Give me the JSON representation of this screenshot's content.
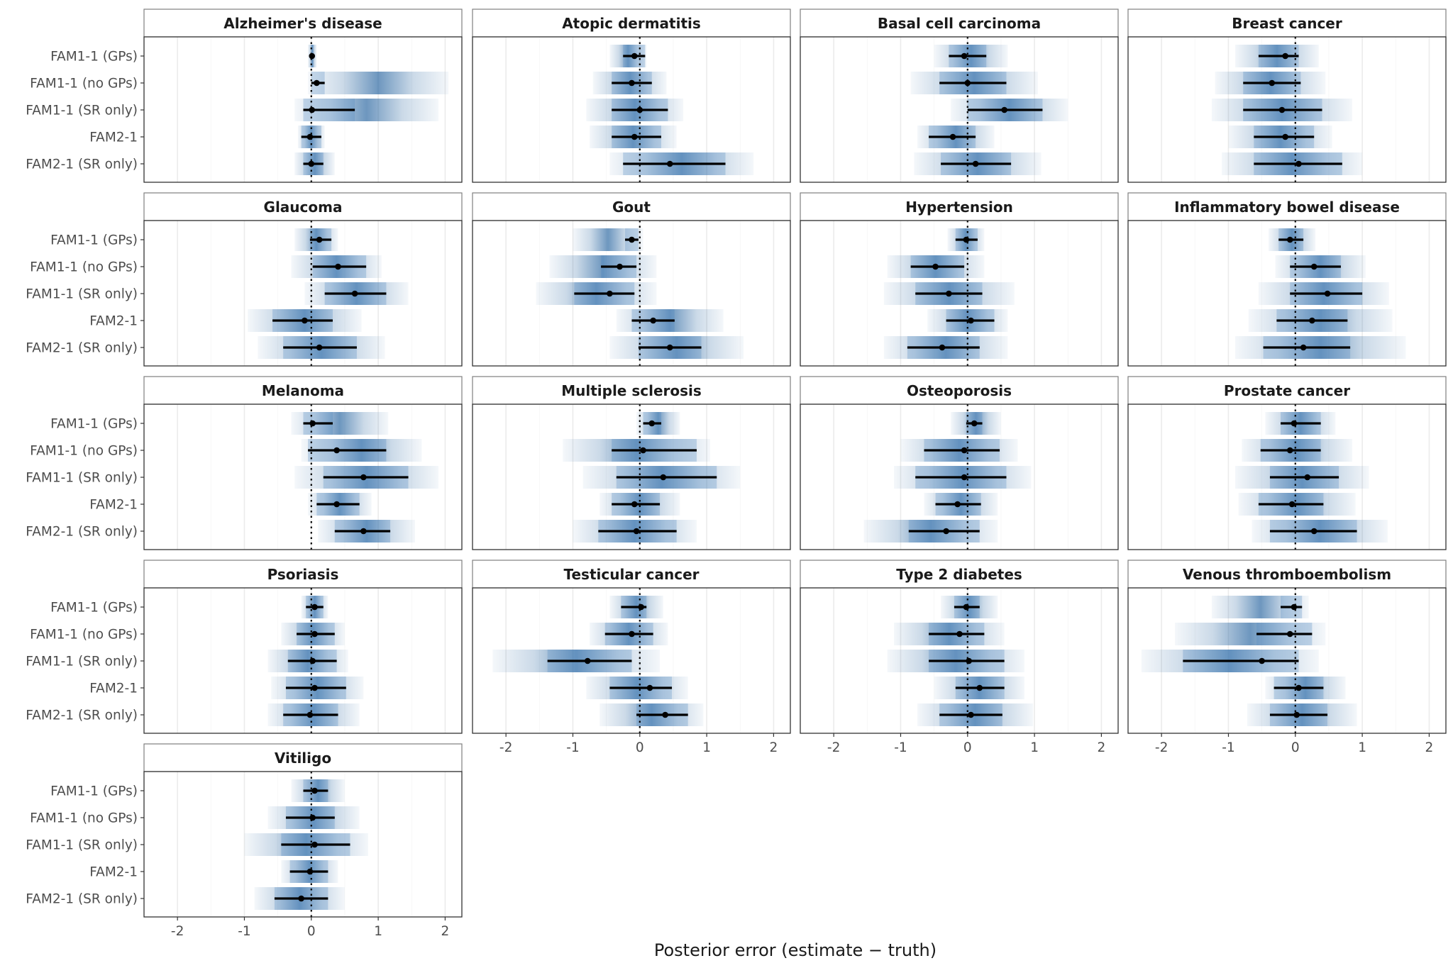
{
  "chart_data": {
    "type": "forest",
    "xlabel": "Posterior error (estimate − truth)",
    "xlim": [
      -2.5,
      2.25
    ],
    "xticks": [
      -2,
      -1,
      0,
      1,
      2
    ],
    "xtick_labels": [
      "-2",
      "-1",
      "0",
      "1",
      "2"
    ],
    "reference_line": 0,
    "methods": [
      "FAM1-1 (GPs)",
      "FAM1-1 (no GPs)",
      "FAM1-1 (SR only)",
      "FAM2-1",
      "FAM2-1 (SR only)"
    ],
    "panels": [
      {
        "title": "Alzheimer's disease",
        "estimates": [
          {
            "method": "FAM1-1 (GPs)",
            "point": 0.01,
            "lower": 0.0,
            "upper": 0.03,
            "dist_min": -0.05,
            "dist_max": 0.08
          },
          {
            "method": "FAM1-1 (no GPs)",
            "point": 0.08,
            "lower": 0.0,
            "upper": 0.2,
            "dist_min": -0.05,
            "dist_max": 2.05
          },
          {
            "method": "FAM1-1 (SR only)",
            "point": 0.01,
            "lower": -0.12,
            "upper": 0.65,
            "dist_min": -0.25,
            "dist_max": 1.9
          },
          {
            "method": "FAM2-1",
            "point": -0.02,
            "lower": -0.15,
            "upper": 0.15,
            "dist_min": -0.2,
            "dist_max": 0.2
          },
          {
            "method": "FAM2-1 (SR only)",
            "point": 0.0,
            "lower": -0.12,
            "upper": 0.18,
            "dist_min": -0.25,
            "dist_max": 0.35
          }
        ]
      },
      {
        "title": "Atopic dermatitis",
        "estimates": [
          {
            "method": "FAM1-1 (GPs)",
            "point": -0.08,
            "lower": -0.25,
            "upper": 0.08,
            "dist_min": -0.45,
            "dist_max": 0.1
          },
          {
            "method": "FAM1-1 (no GPs)",
            "point": -0.12,
            "lower": -0.42,
            "upper": 0.18,
            "dist_min": -0.7,
            "dist_max": 0.4
          },
          {
            "method": "FAM1-1 (SR only)",
            "point": 0.0,
            "lower": -0.42,
            "upper": 0.42,
            "dist_min": -0.8,
            "dist_max": 0.65
          },
          {
            "method": "FAM2-1",
            "point": -0.08,
            "lower": -0.42,
            "upper": 0.32,
            "dist_min": -0.75,
            "dist_max": 0.55
          },
          {
            "method": "FAM2-1 (SR only)",
            "point": 0.45,
            "lower": -0.25,
            "upper": 1.28,
            "dist_min": -0.45,
            "dist_max": 1.7
          }
        ]
      },
      {
        "title": "Basal cell carcinoma",
        "estimates": [
          {
            "method": "FAM1-1 (GPs)",
            "point": -0.05,
            "lower": -0.28,
            "upper": 0.28,
            "dist_min": -0.5,
            "dist_max": 0.6
          },
          {
            "method": "FAM1-1 (no GPs)",
            "point": 0.0,
            "lower": -0.42,
            "upper": 0.58,
            "dist_min": -0.85,
            "dist_max": 1.05
          },
          {
            "method": "FAM1-1 (SR only)",
            "point": 0.55,
            "lower": 0.0,
            "upper": 1.12,
            "dist_min": -0.25,
            "dist_max": 1.5
          },
          {
            "method": "FAM2-1",
            "point": -0.22,
            "lower": -0.58,
            "upper": 0.12,
            "dist_min": -0.75,
            "dist_max": 0.4
          },
          {
            "method": "FAM2-1 (SR only)",
            "point": 0.12,
            "lower": -0.4,
            "upper": 0.65,
            "dist_min": -0.8,
            "dist_max": 1.1
          }
        ]
      },
      {
        "title": "Breast cancer",
        "estimates": [
          {
            "method": "FAM1-1 (GPs)",
            "point": -0.15,
            "lower": -0.55,
            "upper": 0.05,
            "dist_min": -0.9,
            "dist_max": 0.35
          },
          {
            "method": "FAM1-1 (no GPs)",
            "point": -0.35,
            "lower": -0.78,
            "upper": 0.08,
            "dist_min": -1.2,
            "dist_max": 0.45
          },
          {
            "method": "FAM1-1 (SR only)",
            "point": -0.2,
            "lower": -0.78,
            "upper": 0.4,
            "dist_min": -1.25,
            "dist_max": 0.85
          },
          {
            "method": "FAM2-1",
            "point": -0.15,
            "lower": -0.62,
            "upper": 0.28,
            "dist_min": -1.0,
            "dist_max": 0.55
          },
          {
            "method": "FAM2-1 (SR only)",
            "point": 0.05,
            "lower": -0.62,
            "upper": 0.7,
            "dist_min": -1.1,
            "dist_max": 1.0
          }
        ]
      },
      {
        "title": "Glaucoma",
        "estimates": [
          {
            "method": "FAM1-1 (GPs)",
            "point": 0.12,
            "lower": -0.02,
            "upper": 0.3,
            "dist_min": -0.25,
            "dist_max": 0.4
          },
          {
            "method": "FAM1-1 (no GPs)",
            "point": 0.4,
            "lower": 0.02,
            "upper": 0.82,
            "dist_min": -0.3,
            "dist_max": 1.05
          },
          {
            "method": "FAM1-1 (SR only)",
            "point": 0.65,
            "lower": 0.2,
            "upper": 1.12,
            "dist_min": -0.1,
            "dist_max": 1.45
          },
          {
            "method": "FAM2-1",
            "point": -0.1,
            "lower": -0.58,
            "upper": 0.32,
            "dist_min": -0.95,
            "dist_max": 0.75
          },
          {
            "method": "FAM2-1 (SR only)",
            "point": 0.12,
            "lower": -0.42,
            "upper": 0.68,
            "dist_min": -0.8,
            "dist_max": 1.1
          }
        ]
      },
      {
        "title": "Gout",
        "estimates": [
          {
            "method": "FAM1-1 (GPs)",
            "point": -0.12,
            "lower": -0.22,
            "upper": -0.02,
            "dist_min": -1.0,
            "dist_max": 0.05
          },
          {
            "method": "FAM1-1 (no GPs)",
            "point": -0.3,
            "lower": -0.58,
            "upper": -0.05,
            "dist_min": -1.35,
            "dist_max": 0.25
          },
          {
            "method": "FAM1-1 (SR only)",
            "point": -0.45,
            "lower": -0.98,
            "upper": -0.08,
            "dist_min": -1.55,
            "dist_max": 0.25
          },
          {
            "method": "FAM2-1",
            "point": 0.2,
            "lower": -0.12,
            "upper": 0.52,
            "dist_min": -0.35,
            "dist_max": 1.25
          },
          {
            "method": "FAM2-1 (SR only)",
            "point": 0.45,
            "lower": -0.02,
            "upper": 0.92,
            "dist_min": -0.45,
            "dist_max": 1.55
          }
        ]
      },
      {
        "title": "Hypertension",
        "estimates": [
          {
            "method": "FAM1-1 (GPs)",
            "point": -0.02,
            "lower": -0.18,
            "upper": 0.15,
            "dist_min": -0.3,
            "dist_max": 0.25
          },
          {
            "method": "FAM1-1 (no GPs)",
            "point": -0.48,
            "lower": -0.85,
            "upper": -0.05,
            "dist_min": -1.2,
            "dist_max": 0.25
          },
          {
            "method": "FAM1-1 (SR only)",
            "point": -0.28,
            "lower": -0.78,
            "upper": 0.22,
            "dist_min": -1.25,
            "dist_max": 0.7
          },
          {
            "method": "FAM2-1",
            "point": 0.05,
            "lower": -0.32,
            "upper": 0.4,
            "dist_min": -0.6,
            "dist_max": 0.6
          },
          {
            "method": "FAM2-1 (SR only)",
            "point": -0.38,
            "lower": -0.9,
            "upper": 0.18,
            "dist_min": -1.25,
            "dist_max": 0.6
          }
        ]
      },
      {
        "title": "Inflammatory bowel disease",
        "estimates": [
          {
            "method": "FAM1-1 (GPs)",
            "point": -0.08,
            "lower": -0.25,
            "upper": 0.12,
            "dist_min": -0.4,
            "dist_max": 0.3
          },
          {
            "method": "FAM1-1 (no GPs)",
            "point": 0.28,
            "lower": -0.08,
            "upper": 0.68,
            "dist_min": -0.3,
            "dist_max": 1.05
          },
          {
            "method": "FAM1-1 (SR only)",
            "point": 0.48,
            "lower": -0.08,
            "upper": 1.0,
            "dist_min": -0.55,
            "dist_max": 1.4
          },
          {
            "method": "FAM2-1",
            "point": 0.25,
            "lower": -0.28,
            "upper": 0.78,
            "dist_min": -0.7,
            "dist_max": 1.45
          },
          {
            "method": "FAM2-1 (SR only)",
            "point": 0.12,
            "lower": -0.48,
            "upper": 0.82,
            "dist_min": -0.9,
            "dist_max": 1.65
          }
        ]
      },
      {
        "title": "Melanoma",
        "estimates": [
          {
            "method": "FAM1-1 (GPs)",
            "point": 0.02,
            "lower": -0.12,
            "upper": 0.32,
            "dist_min": -0.3,
            "dist_max": 1.15
          },
          {
            "method": "FAM1-1 (no GPs)",
            "point": 0.38,
            "lower": -0.05,
            "upper": 1.12,
            "dist_min": -0.15,
            "dist_max": 1.65
          },
          {
            "method": "FAM1-1 (SR only)",
            "point": 0.78,
            "lower": 0.18,
            "upper": 1.45,
            "dist_min": -0.25,
            "dist_max": 1.9
          },
          {
            "method": "FAM2-1",
            "point": 0.38,
            "lower": 0.08,
            "upper": 0.72,
            "dist_min": -0.05,
            "dist_max": 0.9
          },
          {
            "method": "FAM2-1 (SR only)",
            "point": 0.78,
            "lower": 0.35,
            "upper": 1.18,
            "dist_min": 0.1,
            "dist_max": 1.55
          }
        ]
      },
      {
        "title": "Multiple sclerosis",
        "estimates": [
          {
            "method": "FAM1-1 (GPs)",
            "point": 0.18,
            "lower": 0.05,
            "upper": 0.32,
            "dist_min": -0.05,
            "dist_max": 0.6
          },
          {
            "method": "FAM1-1 (no GPs)",
            "point": 0.05,
            "lower": -0.42,
            "upper": 0.85,
            "dist_min": -1.15,
            "dist_max": 1.05
          },
          {
            "method": "FAM1-1 (SR only)",
            "point": 0.35,
            "lower": -0.35,
            "upper": 1.15,
            "dist_min": -0.85,
            "dist_max": 1.5
          },
          {
            "method": "FAM2-1",
            "point": -0.08,
            "lower": -0.42,
            "upper": 0.3,
            "dist_min": -0.6,
            "dist_max": 0.6
          },
          {
            "method": "FAM2-1 (SR only)",
            "point": -0.05,
            "lower": -0.62,
            "upper": 0.55,
            "dist_min": -1.0,
            "dist_max": 0.85
          }
        ]
      },
      {
        "title": "Osteoporosis",
        "estimates": [
          {
            "method": "FAM1-1 (GPs)",
            "point": 0.1,
            "lower": -0.02,
            "upper": 0.22,
            "dist_min": -0.25,
            "dist_max": 0.5
          },
          {
            "method": "FAM1-1 (no GPs)",
            "point": -0.05,
            "lower": -0.65,
            "upper": 0.48,
            "dist_min": -1.0,
            "dist_max": 0.75
          },
          {
            "method": "FAM1-1 (SR only)",
            "point": -0.05,
            "lower": -0.78,
            "upper": 0.58,
            "dist_min": -1.1,
            "dist_max": 0.95
          },
          {
            "method": "FAM2-1",
            "point": -0.15,
            "lower": -0.48,
            "upper": 0.2,
            "dist_min": -0.65,
            "dist_max": 0.45
          },
          {
            "method": "FAM2-1 (SR only)",
            "point": -0.32,
            "lower": -0.88,
            "upper": 0.18,
            "dist_min": -1.55,
            "dist_max": 0.45
          }
        ]
      },
      {
        "title": "Prostate cancer",
        "estimates": [
          {
            "method": "FAM1-1 (GPs)",
            "point": -0.02,
            "lower": -0.22,
            "upper": 0.38,
            "dist_min": -0.45,
            "dist_max": 0.6
          },
          {
            "method": "FAM1-1 (no GPs)",
            "point": -0.08,
            "lower": -0.52,
            "upper": 0.38,
            "dist_min": -0.8,
            "dist_max": 0.85
          },
          {
            "method": "FAM1-1 (SR only)",
            "point": 0.18,
            "lower": -0.38,
            "upper": 0.65,
            "dist_min": -0.9,
            "dist_max": 1.1
          },
          {
            "method": "FAM2-1",
            "point": -0.05,
            "lower": -0.55,
            "upper": 0.42,
            "dist_min": -0.85,
            "dist_max": 0.9
          },
          {
            "method": "FAM2-1 (SR only)",
            "point": 0.28,
            "lower": -0.38,
            "upper": 0.92,
            "dist_min": -0.65,
            "dist_max": 1.38
          }
        ]
      },
      {
        "title": "Psoriasis",
        "estimates": [
          {
            "method": "FAM1-1 (GPs)",
            "point": 0.05,
            "lower": -0.08,
            "upper": 0.18,
            "dist_min": -0.15,
            "dist_max": 0.25
          },
          {
            "method": "FAM1-1 (no GPs)",
            "point": 0.05,
            "lower": -0.22,
            "upper": 0.35,
            "dist_min": -0.45,
            "dist_max": 0.5
          },
          {
            "method": "FAM1-1 (SR only)",
            "point": 0.02,
            "lower": -0.35,
            "upper": 0.38,
            "dist_min": -0.65,
            "dist_max": 0.55
          },
          {
            "method": "FAM2-1",
            "point": 0.05,
            "lower": -0.38,
            "upper": 0.52,
            "dist_min": -0.6,
            "dist_max": 0.78
          },
          {
            "method": "FAM2-1 (SR only)",
            "point": -0.02,
            "lower": -0.42,
            "upper": 0.4,
            "dist_min": -0.65,
            "dist_max": 0.72
          }
        ]
      },
      {
        "title": "Testicular cancer",
        "estimates": [
          {
            "method": "FAM1-1 (GPs)",
            "point": 0.02,
            "lower": -0.28,
            "upper": 0.1,
            "dist_min": -0.45,
            "dist_max": 0.35
          },
          {
            "method": "FAM1-1 (no GPs)",
            "point": -0.12,
            "lower": -0.52,
            "upper": 0.2,
            "dist_min": -0.75,
            "dist_max": 0.42
          },
          {
            "method": "FAM1-1 (SR only)",
            "point": -0.78,
            "lower": -1.38,
            "upper": -0.12,
            "dist_min": -2.2,
            "dist_max": 0.3
          },
          {
            "method": "FAM2-1",
            "point": 0.15,
            "lower": -0.45,
            "upper": 0.48,
            "dist_min": -0.8,
            "dist_max": 0.72
          },
          {
            "method": "FAM2-1 (SR only)",
            "point": 0.38,
            "lower": -0.05,
            "upper": 0.72,
            "dist_min": -0.6,
            "dist_max": 0.95
          }
        ]
      },
      {
        "title": "Type 2 diabetes",
        "estimates": [
          {
            "method": "FAM1-1 (GPs)",
            "point": -0.02,
            "lower": -0.2,
            "upper": 0.18,
            "dist_min": -0.4,
            "dist_max": 0.45
          },
          {
            "method": "FAM1-1 (no GPs)",
            "point": -0.12,
            "lower": -0.58,
            "upper": 0.25,
            "dist_min": -1.1,
            "dist_max": 0.55
          },
          {
            "method": "FAM1-1 (SR only)",
            "point": 0.02,
            "lower": -0.58,
            "upper": 0.55,
            "dist_min": -1.2,
            "dist_max": 0.85
          },
          {
            "method": "FAM2-1",
            "point": 0.18,
            "lower": -0.18,
            "upper": 0.55,
            "dist_min": -0.5,
            "dist_max": 0.85
          },
          {
            "method": "FAM2-1 (SR only)",
            "point": 0.05,
            "lower": -0.42,
            "upper": 0.52,
            "dist_min": -0.75,
            "dist_max": 0.98
          }
        ]
      },
      {
        "title": "Venous thromboembolism",
        "estimates": [
          {
            "method": "FAM1-1 (GPs)",
            "point": -0.02,
            "lower": -0.22,
            "upper": 0.1,
            "dist_min": -1.25,
            "dist_max": 0.2
          },
          {
            "method": "FAM1-1 (no GPs)",
            "point": -0.08,
            "lower": -0.58,
            "upper": 0.25,
            "dist_min": -1.8,
            "dist_max": 0.45
          },
          {
            "method": "FAM1-1 (SR only)",
            "point": -0.5,
            "lower": -1.68,
            "upper": 0.05,
            "dist_min": -2.3,
            "dist_max": 0.35
          },
          {
            "method": "FAM2-1",
            "point": 0.05,
            "lower": -0.32,
            "upper": 0.42,
            "dist_min": -0.45,
            "dist_max": 0.75
          },
          {
            "method": "FAM2-1 (SR only)",
            "point": 0.02,
            "lower": -0.38,
            "upper": 0.48,
            "dist_min": -0.72,
            "dist_max": 0.92
          }
        ]
      },
      {
        "title": "Vitiligo",
        "estimates": [
          {
            "method": "FAM1-1 (GPs)",
            "point": 0.05,
            "lower": -0.12,
            "upper": 0.25,
            "dist_min": -0.3,
            "dist_max": 0.5
          },
          {
            "method": "FAM1-1 (no GPs)",
            "point": 0.02,
            "lower": -0.38,
            "upper": 0.35,
            "dist_min": -0.65,
            "dist_max": 0.72
          },
          {
            "method": "FAM1-1 (SR only)",
            "point": 0.05,
            "lower": -0.45,
            "upper": 0.58,
            "dist_min": -1.0,
            "dist_max": 0.85
          },
          {
            "method": "FAM2-1",
            "point": -0.02,
            "lower": -0.32,
            "upper": 0.25,
            "dist_min": -0.45,
            "dist_max": 0.4
          },
          {
            "method": "FAM2-1 (SR only)",
            "point": -0.15,
            "lower": -0.55,
            "upper": 0.25,
            "dist_min": -0.85,
            "dist_max": 0.5
          }
        ]
      }
    ]
  }
}
